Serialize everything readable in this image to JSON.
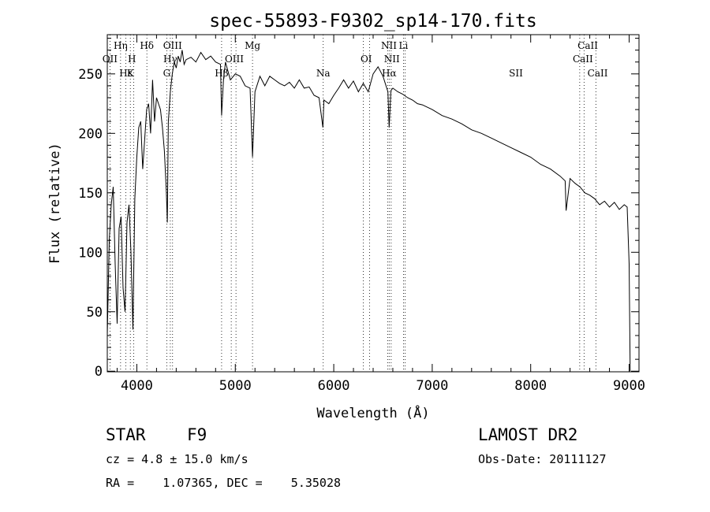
{
  "chart_data": {
    "type": "line",
    "title": "spec-55893-F9302_sp14-170.fits",
    "xlabel": "Wavelength (Å)",
    "ylabel": "Flux (relative)",
    "xlim": [
      3700,
      9100
    ],
    "ylim": [
      -5,
      2830
    ],
    "xticks": [
      4000,
      5000,
      6000,
      7000,
      8000,
      9000
    ],
    "yticks": [
      0,
      500,
      1000,
      1500,
      2000,
      2500
    ],
    "ytick_labels": [
      "0",
      "50",
      "100",
      "150",
      "200",
      "250"
    ],
    "grid": false,
    "series": [
      {
        "x": [
          3700,
          3720,
          3740,
          3760,
          3780,
          3800,
          3820,
          3840,
          3860,
          3880,
          3900,
          3920,
          3940,
          3960,
          3980,
          4000,
          4020,
          4040,
          4060,
          4080,
          4100,
          4120,
          4140,
          4160,
          4180,
          4200,
          4220,
          4240,
          4260,
          4280,
          4300,
          4310,
          4320,
          4340,
          4360,
          4380,
          4400,
          4420,
          4440,
          4460,
          4480,
          4500,
          4550,
          4600,
          4650,
          4700,
          4750,
          4800,
          4850,
          4861,
          4880,
          4900,
          4950,
          5000,
          5050,
          5100,
          5150,
          5175,
          5200,
          5250,
          5300,
          5350,
          5400,
          5450,
          5500,
          5550,
          5600,
          5650,
          5700,
          5750,
          5800,
          5850,
          5890,
          5900,
          5950,
          6000,
          6050,
          6100,
          6150,
          6200,
          6250,
          6300,
          6350,
          6400,
          6450,
          6500,
          6550,
          6563,
          6580,
          6600,
          6650,
          6700,
          6750,
          6800,
          6850,
          6900,
          6950,
          7000,
          7100,
          7200,
          7300,
          7400,
          7500,
          7600,
          7700,
          7800,
          7900,
          8000,
          8100,
          8200,
          8300,
          8350,
          8360,
          8400,
          8450,
          8500,
          8550,
          8600,
          8650,
          8700,
          8750,
          8800,
          8850,
          8900,
          8950,
          8980,
          9000,
          9010
        ],
        "y": [
          300,
          1100,
          1400,
          1550,
          900,
          400,
          1200,
          1300,
          700,
          500,
          1250,
          1400,
          1000,
          350,
          1450,
          1800,
          2050,
          2100,
          1700,
          1950,
          2200,
          2250,
          2000,
          2450,
          2100,
          2300,
          2250,
          2200,
          2050,
          1850,
          1500,
          1250,
          2100,
          2350,
          2500,
          2600,
          2550,
          2650,
          2600,
          2700,
          2580,
          2620,
          2640,
          2600,
          2680,
          2620,
          2650,
          2600,
          2580,
          2150,
          2450,
          2600,
          2450,
          2500,
          2480,
          2400,
          2380,
          1800,
          2350,
          2480,
          2400,
          2480,
          2450,
          2420,
          2400,
          2430,
          2380,
          2450,
          2380,
          2390,
          2320,
          2300,
          2050,
          2280,
          2250,
          2320,
          2380,
          2450,
          2380,
          2440,
          2350,
          2420,
          2350,
          2500,
          2560,
          2480,
          2350,
          2050,
          2360,
          2380,
          2350,
          2330,
          2300,
          2280,
          2250,
          2240,
          2220,
          2200,
          2150,
          2120,
          2080,
          2030,
          2000,
          1960,
          1920,
          1880,
          1840,
          1800,
          1740,
          1700,
          1640,
          1600,
          1350,
          1620,
          1580,
          1550,
          1500,
          1480,
          1450,
          1400,
          1430,
          1380,
          1420,
          1360,
          1400,
          1380,
          900,
          0
        ]
      }
    ],
    "lines": [
      {
        "name": "OII",
        "x": 3727
      },
      {
        "name": "Hη",
        "x": 3835
      },
      {
        "name": "Hε",
        "x": 3889
      },
      {
        "name": "K",
        "x": 3934
      },
      {
        "name": "H",
        "x": 3968
      },
      {
        "name": "Hδ",
        "x": 4102
      },
      {
        "name": "G",
        "x": 4304
      },
      {
        "name": "Hγ",
        "x": 4340
      },
      {
        "name": "OIII",
        "x": 4363
      },
      {
        "name": "Hβ",
        "x": 4861
      },
      {
        "name": "OIII",
        "x": 4959
      },
      {
        "name": "OIII",
        "x": 5007
      },
      {
        "name": "Mg",
        "x": 5175
      },
      {
        "name": "Na",
        "x": 5893
      },
      {
        "name": "OI",
        "x": 6300
      },
      {
        "name": "OI",
        "x": 6363
      },
      {
        "name": "NII",
        "x": 6548
      },
      {
        "name": "Hα",
        "x": 6563
      },
      {
        "name": "NII",
        "x": 6583
      },
      {
        "name": "Li",
        "x": 6708
      },
      {
        "name": "SII",
        "x": 6724
      },
      {
        "name": "CaII",
        "x": 8498
      },
      {
        "name": "CaII",
        "x": 8542
      },
      {
        "name": "CaII",
        "x": 8662
      }
    ],
    "line_labels": [
      {
        "text": "OII",
        "x": 3727
      },
      {
        "text": "Hη",
        "x": 3835
      },
      {
        "text": "Hε",
        "x": 3889
      },
      {
        "text": "H",
        "x": 3950
      },
      {
        "text": "K",
        "x": 3934
      },
      {
        "text": "Hδ",
        "x": 4102
      },
      {
        "text": "OIII",
        "x": 4363
      },
      {
        "text": "Hγ",
        "x": 4340
      },
      {
        "text": "G",
        "x": 4304
      },
      {
        "text": "OIII",
        "x": 4990
      },
      {
        "text": "Hβ",
        "x": 4861
      },
      {
        "text": "Mg",
        "x": 5175
      },
      {
        "text": "Na",
        "x": 5893
      },
      {
        "text": "OI",
        "x": 6330
      },
      {
        "text": "NII",
        "x": 6560
      },
      {
        "text": "NII",
        "x": 6590
      },
      {
        "text": "Hα",
        "x": 6563
      },
      {
        "text": "Li",
        "x": 6708
      },
      {
        "text": "SII",
        "x": 7850
      },
      {
        "text": "CaII",
        "x": 8580
      },
      {
        "text": "CaII",
        "x": 8530
      },
      {
        "text": "CaII",
        "x": 8680
      }
    ]
  },
  "info": {
    "object_class": "STAR",
    "subclass": "F9",
    "survey": "LAMOST DR2",
    "redshift": "cz = 4.8 ± 15.0 km/s",
    "obs_date": "Obs-Date: 20111127",
    "coords": "RA =    1.07365, DEC =    5.35028"
  }
}
